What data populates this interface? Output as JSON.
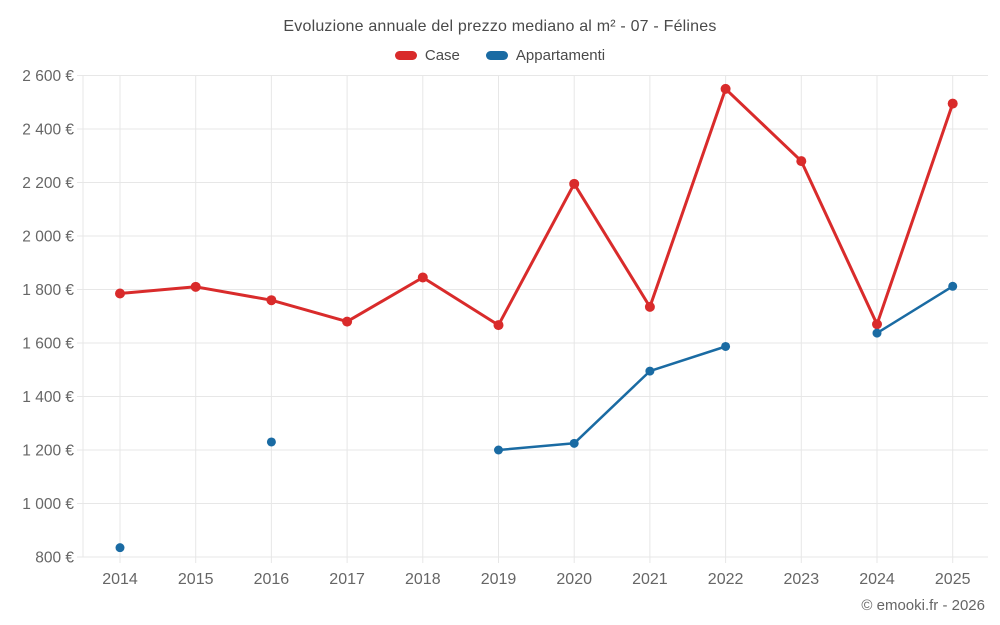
{
  "page": {
    "title": "Evoluzione annuale del prezzo mediano al m² - 07 - Félines",
    "footer": "© emooki.fr - 2026"
  },
  "legend": {
    "items": [
      {
        "label": "Case",
        "color": "#d92b2b"
      },
      {
        "label": "Appartamenti",
        "color": "#1a6ba3"
      }
    ]
  },
  "chart_data": {
    "type": "line",
    "title": "Evoluzione annuale del prezzo mediano al m² - 07 - Félines",
    "categories": [
      2014,
      2015,
      2016,
      2017,
      2018,
      2019,
      2020,
      2021,
      2022,
      2023,
      2024,
      2025
    ],
    "series": [
      {
        "name": "Case",
        "color": "#d92b2b",
        "line_width": 3,
        "point_radius": 5,
        "values": [
          1785,
          1810,
          1760,
          1680,
          1845,
          1667,
          2195,
          1735,
          2550,
          2280,
          1670,
          2495
        ]
      },
      {
        "name": "Appartamenti",
        "color": "#1a6ba3",
        "line_width": 2.5,
        "point_radius": 4.5,
        "values": [
          835,
          null,
          1230,
          null,
          null,
          1200,
          1225,
          1495,
          1587,
          null,
          1637,
          1812
        ]
      }
    ],
    "ylim": [
      800,
      2600
    ],
    "y_tick_step": 200,
    "y_tick_suffix": " €",
    "y_tick_labels": [
      "800 €",
      "1 000 €",
      "1 200 €",
      "1 400 €",
      "1 600 €",
      "1 800 €",
      "2 000 €",
      "2 200 €",
      "2 400 €",
      "2 600 €"
    ],
    "grid": true,
    "grid_color": "#e7e7e7",
    "axis_text_color": "#666666",
    "legend_position": "top"
  }
}
